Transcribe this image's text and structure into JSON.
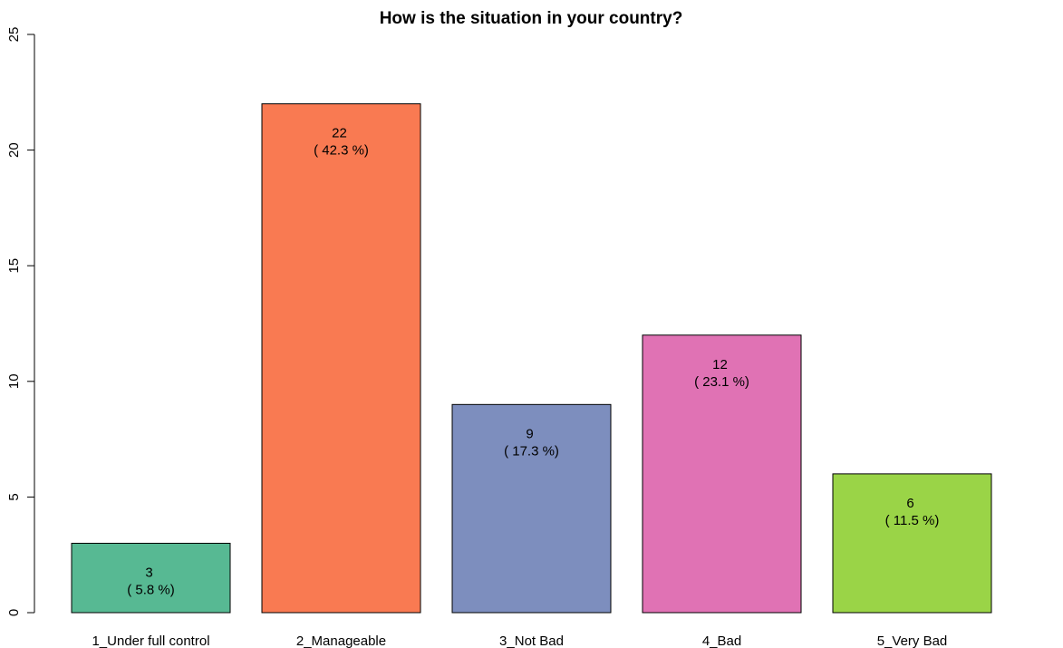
{
  "chart_data": {
    "type": "bar",
    "title": "How is the situation in your country?",
    "xlabel": "",
    "ylabel": "",
    "categories": [
      "1_Under full control",
      "2_Manageable",
      "3_Not Bad",
      "4_Bad",
      "5_Very Bad"
    ],
    "values": [
      3,
      22,
      9,
      12,
      6
    ],
    "value_labels": [
      "3",
      "22",
      "9",
      "12",
      "6"
    ],
    "percent_labels": [
      "( 5.8 %)",
      "( 42.3 %)",
      "( 17.3 %)",
      "( 23.1 %)",
      "( 11.5 %)"
    ],
    "colors": [
      "#57b993",
      "#f97a52",
      "#7d8ebe",
      "#e072b4",
      "#9ad447"
    ],
    "ylim": [
      0,
      25
    ],
    "yticks": [
      "0",
      "5",
      "10",
      "15",
      "20",
      "25"
    ],
    "grid": false,
    "legend": "none"
  }
}
